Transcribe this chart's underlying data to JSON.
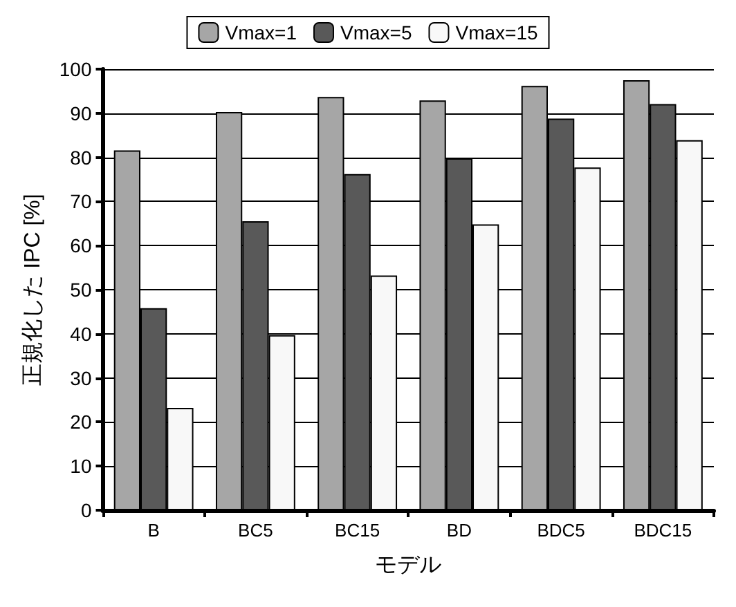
{
  "chart_data": {
    "type": "bar",
    "xlabel": "モデル",
    "ylabel": "正規化した IPC [%]",
    "categories": [
      "B",
      "BC5",
      "BC15",
      "BD",
      "BDC5",
      "BDC15"
    ],
    "series": [
      {
        "name": "Vmax=1",
        "color": "#a6a6a6",
        "values": [
          81.6,
          90.3,
          93.7,
          92.9,
          96.2,
          97.5
        ]
      },
      {
        "name": "Vmax=5",
        "color": "#595959",
        "values": [
          45.8,
          65.5,
          76.2,
          79.8,
          88.8,
          92.1
        ]
      },
      {
        "name": "Vmax=15",
        "color": "#f8f8f8",
        "values": [
          23.2,
          39.7,
          53.2,
          64.8,
          77.7,
          83.9
        ]
      }
    ],
    "ylim": [
      0,
      100
    ],
    "yticks": [
      0,
      10,
      20,
      30,
      40,
      50,
      60,
      70,
      80,
      90,
      100
    ],
    "grid": "y",
    "legend": "top"
  }
}
